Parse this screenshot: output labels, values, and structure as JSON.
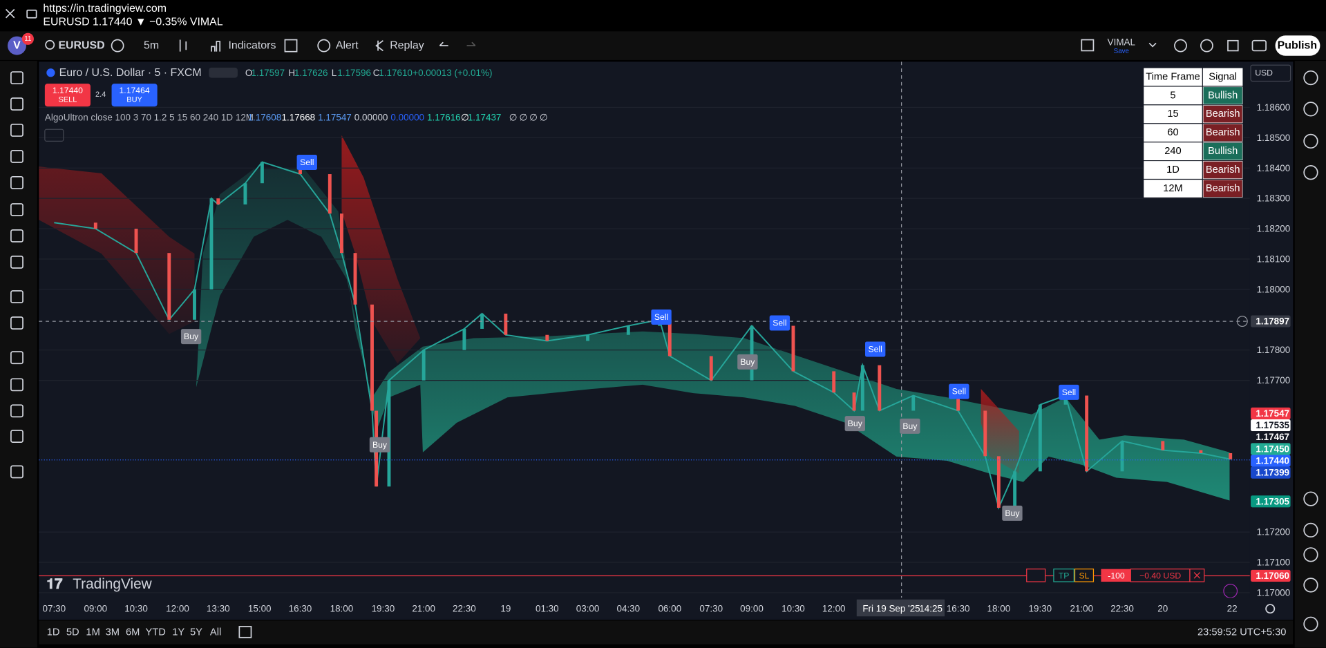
{
  "browser": {
    "url": "https://in.tradingview.com",
    "tab_title": "EURUSD 1.17440 ▼ −0.35% VIMAL"
  },
  "toolbar": {
    "avatar": "V",
    "notifications": "11",
    "symbol": "EURUSD",
    "interval": "5m",
    "indicators": "Indicators",
    "alert": "Alert",
    "replay": "Replay",
    "layout_name": "VIMAL",
    "layout_status": "Save",
    "publish": "Publish",
    "currency": "USD"
  },
  "legend": {
    "title": "Euro / U.S. Dollar · 5 · FXCM",
    "ohlc": [
      [
        "O",
        "1.17597"
      ],
      [
        "H",
        "1.17626"
      ],
      [
        "L",
        "1.17596"
      ],
      [
        "C",
        "1.17610"
      ]
    ],
    "change": "+0.00013 (+0.01%)",
    "sell_price": "1.17440",
    "sell": "SELL",
    "spread": "2.4",
    "buy_price": "1.17464",
    "buy": "BUY",
    "indicator": "AlgoUltron close 100 3 70 1.2 5 15 60 240 1D 12M",
    "indicator_values": [
      "1.17608",
      "1.17668",
      "1.17547",
      "0.00000",
      "0.00000",
      "1.17616",
      "∅",
      "1.17437",
      "∅",
      "∅",
      "∅",
      "∅"
    ]
  },
  "signal_table": {
    "headers": [
      "Time Frame",
      "Signal"
    ],
    "rows": [
      [
        "5",
        "Bullish"
      ],
      [
        "15",
        "Bearish"
      ],
      [
        "60",
        "Bearish"
      ],
      [
        "240",
        "Bullish"
      ],
      [
        "1D",
        "Bearish"
      ],
      [
        "12M",
        "Bearish"
      ]
    ]
  },
  "price_axis": {
    "ylim": [
      1.17,
      1.186
    ],
    "ticks": [
      {
        "value": 1.186,
        "label": "1.18600"
      },
      {
        "value": 1.185,
        "label": "1.18500"
      },
      {
        "value": 1.184,
        "label": "1.18400"
      },
      {
        "value": 1.183,
        "label": "1.18300"
      },
      {
        "value": 1.182,
        "label": "1.18200"
      },
      {
        "value": 1.181,
        "label": "1.18100"
      },
      {
        "value": 1.18,
        "label": "1.18000"
      },
      {
        "value": 1.178,
        "label": "1.17800"
      },
      {
        "value": 1.177,
        "label": "1.17700"
      },
      {
        "value": 1.172,
        "label": "1.17200"
      },
      {
        "value": 1.171,
        "label": "1.17100"
      },
      {
        "value": 1.17,
        "label": "1.17000"
      }
    ],
    "tags": [
      {
        "value": 1.17897,
        "label": "1.17897"
      },
      {
        "value": 1.17547,
        "label": "1.17547"
      },
      {
        "value": 1.17535,
        "label": "1.17535"
      },
      {
        "value": 1.17467,
        "label": "1.17467"
      },
      {
        "value": 1.1745,
        "label": "1.17450"
      },
      {
        "value": 1.1744,
        "label": "1.17440"
      },
      {
        "value": 1.17399,
        "label": "1.17399"
      },
      {
        "value": 1.17305,
        "label": "1.17305"
      },
      {
        "value": 1.1706,
        "label": "1.17060"
      }
    ]
  },
  "price_trace": [
    1.1822,
    1.182,
    1.1812,
    1.179,
    1.18,
    1.183,
    1.1828,
    1.1835,
    1.1842,
    1.1838,
    1.1825,
    1.1812,
    1.1795,
    1.176,
    1.1735,
    1.177,
    1.178,
    1.1787,
    1.1792,
    1.1785,
    1.1783,
    1.1785,
    1.1788,
    1.179,
    1.1778,
    1.177,
    1.1788,
    1.1773,
    1.1766,
    1.176,
    1.1775,
    1.176,
    1.1765,
    1.176,
    1.1745,
    1.1728,
    1.174,
    1.1762,
    1.1765,
    1.174,
    1.175,
    1.1747,
    1.1746,
    1.1744
  ],
  "signals": [
    "Sell",
    "Sell",
    "Sell",
    "Sell",
    "Sell",
    "Sell",
    "Buy",
    "Buy",
    "Buy",
    "Buy",
    "Buy",
    "Buy"
  ],
  "time_axis": {
    "labels": [
      "07:30",
      "09:00",
      "10:30",
      "12:00",
      "13:30",
      "15:00",
      "16:30",
      "18:00",
      "19:30",
      "21:00",
      "22:30",
      "19",
      "01:30",
      "03:00",
      "04:30",
      "06:00",
      "07:30",
      "09:00",
      "10:30",
      "12:00",
      "16:30",
      "18:00",
      "19:30",
      "21:00",
      "22:30",
      "20",
      "22"
    ],
    "crosshair_date": "Fri 19 Sep '25",
    "crosshair_time": "14:25"
  },
  "order_line": {
    "tp": "TP",
    "sl": "SL",
    "qty": "-100",
    "pnl": "−0.40 USD"
  },
  "watermark": "TradingView",
  "bottom_bar": {
    "ranges": [
      "1D",
      "5D",
      "1M",
      "3M",
      "6M",
      "YTD",
      "1Y",
      "5Y",
      "All"
    ],
    "clock": "23:59:52 UTC+5:30"
  }
}
